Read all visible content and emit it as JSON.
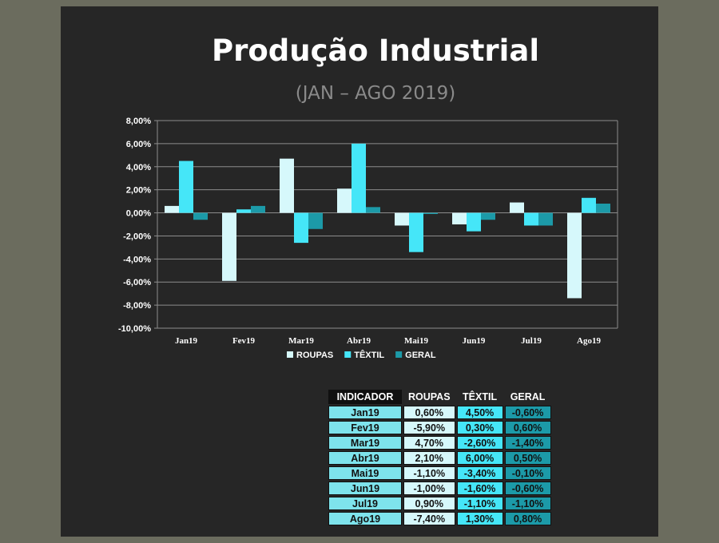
{
  "title": "Produção Industrial",
  "subtitle": "(JAN – AGO 2019)",
  "colors": {
    "roupas": "#d6f8fb",
    "textil": "#45e6f8",
    "geral": "#1c9aa8",
    "background": "#262626",
    "outer": "#6b6c5e"
  },
  "chart_data": {
    "type": "bar",
    "categories": [
      "Jan19",
      "Fev19",
      "Mar19",
      "Abr19",
      "Mai19",
      "Jun19",
      "Jul19",
      "Ago19"
    ],
    "series": [
      {
        "name": "ROUPAS",
        "values": [
          0.6,
          -5.9,
          4.7,
          2.1,
          -1.1,
          -1.0,
          0.9,
          -7.4
        ]
      },
      {
        "name": "TÊXTIL",
        "values": [
          4.5,
          0.3,
          -2.6,
          6.0,
          -3.4,
          -1.6,
          -1.1,
          1.3
        ]
      },
      {
        "name": "GERAL",
        "values": [
          -0.6,
          0.6,
          -1.4,
          0.5,
          -0.1,
          -0.6,
          -1.1,
          0.8
        ]
      }
    ],
    "ylim": [
      -10,
      8
    ],
    "yticks": [
      "8,00%",
      "6,00%",
      "4,00%",
      "2,00%",
      "0,00%",
      "-2,00%",
      "-4,00%",
      "-6,00%",
      "-8,00%",
      "-10,00%"
    ],
    "ytick_values": [
      8,
      6,
      4,
      2,
      0,
      -2,
      -4,
      -6,
      -8,
      -10
    ],
    "grid": true,
    "legend": "bottom"
  },
  "table": {
    "headers": [
      "INDICADOR",
      "ROUPAS",
      "TÊXTIL",
      "GERAL"
    ],
    "rows": [
      [
        "Jan19",
        "0,60%",
        "4,50%",
        "-0,60%"
      ],
      [
        "Fev19",
        "-5,90%",
        "0,30%",
        "0,60%"
      ],
      [
        "Mar19",
        "4,70%",
        "-2,60%",
        "-1,40%"
      ],
      [
        "Abr19",
        "2,10%",
        "6,00%",
        "0,50%"
      ],
      [
        "Mai19",
        "-1,10%",
        "-3,40%",
        "-0,10%"
      ],
      [
        "Jun19",
        "-1,00%",
        "-1,60%",
        "-0,60%"
      ],
      [
        "Jul19",
        "0,90%",
        "-1,10%",
        "-1,10%"
      ],
      [
        "Ago19",
        "-7,40%",
        "1,30%",
        "0,80%"
      ]
    ]
  }
}
